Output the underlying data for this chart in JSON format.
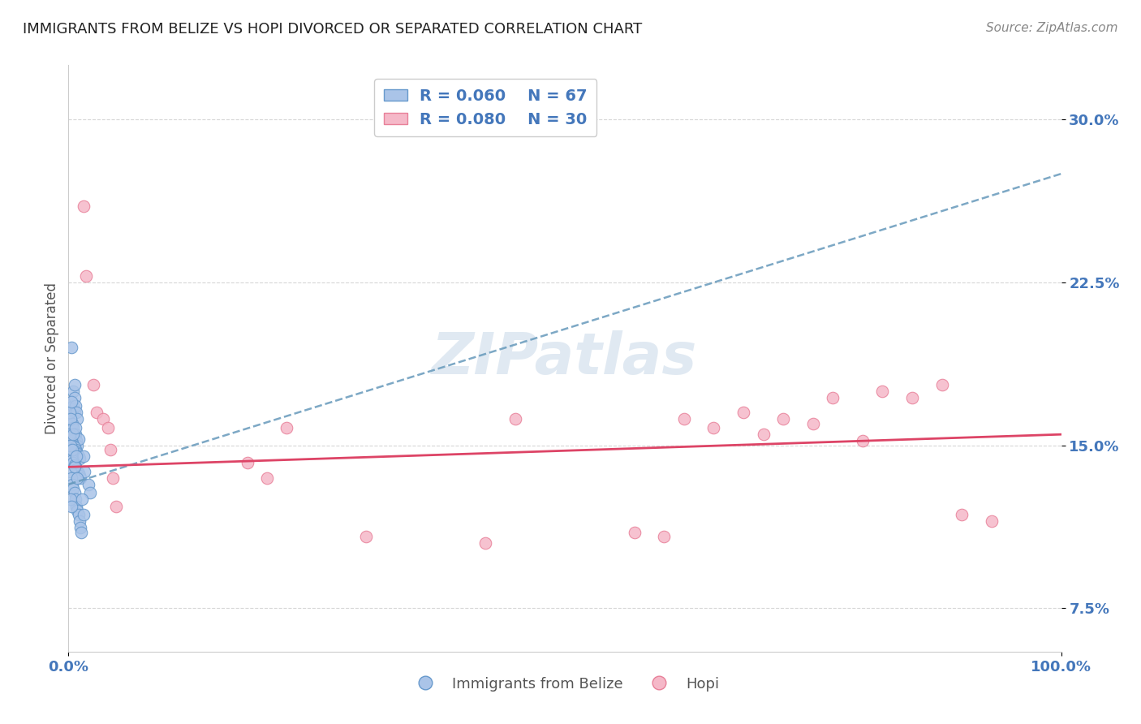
{
  "title": "IMMIGRANTS FROM BELIZE VS HOPI DIVORCED OR SEPARATED CORRELATION CHART",
  "source": "Source: ZipAtlas.com",
  "ylabel": "Divorced or Separated",
  "yticks": [
    7.5,
    15.0,
    22.5,
    30.0
  ],
  "xlim": [
    0.0,
    100.0
  ],
  "ylim": [
    5.5,
    32.5
  ],
  "watermark": "ZIPatlas",
  "legend_blue_r": "R = 0.060",
  "legend_blue_n": "N = 67",
  "legend_pink_r": "R = 0.080",
  "legend_pink_n": "N = 30",
  "blue_points": [
    [
      0.3,
      19.5
    ],
    [
      0.5,
      17.5
    ],
    [
      0.5,
      16.8
    ],
    [
      0.6,
      17.8
    ],
    [
      0.6,
      17.2
    ],
    [
      0.6,
      16.5
    ],
    [
      0.7,
      16.8
    ],
    [
      0.8,
      16.5
    ],
    [
      0.9,
      16.2
    ],
    [
      0.4,
      16.0
    ],
    [
      0.5,
      15.8
    ],
    [
      0.6,
      15.5
    ],
    [
      0.7,
      15.5
    ],
    [
      0.8,
      15.2
    ],
    [
      0.9,
      15.0
    ],
    [
      1.0,
      15.3
    ],
    [
      0.3,
      15.2
    ],
    [
      0.4,
      15.1
    ],
    [
      0.5,
      15.0
    ],
    [
      0.6,
      14.9
    ],
    [
      0.7,
      14.8
    ],
    [
      0.8,
      14.7
    ],
    [
      0.9,
      14.6
    ],
    [
      1.0,
      14.5
    ],
    [
      1.1,
      14.4
    ],
    [
      0.2,
      14.8
    ],
    [
      0.3,
      14.5
    ],
    [
      0.4,
      14.3
    ],
    [
      0.5,
      14.2
    ],
    [
      0.6,
      14.1
    ],
    [
      0.7,
      14.0
    ],
    [
      0.8,
      13.9
    ],
    [
      0.9,
      13.8
    ],
    [
      1.0,
      13.7
    ],
    [
      1.1,
      13.6
    ],
    [
      1.2,
      13.5
    ],
    [
      0.2,
      13.8
    ],
    [
      0.3,
      13.5
    ],
    [
      0.4,
      13.2
    ],
    [
      0.5,
      13.0
    ],
    [
      0.6,
      12.8
    ],
    [
      0.7,
      12.5
    ],
    [
      0.8,
      12.2
    ],
    [
      0.9,
      12.0
    ],
    [
      1.0,
      11.8
    ],
    [
      1.1,
      11.5
    ],
    [
      1.2,
      11.2
    ],
    [
      1.3,
      11.0
    ],
    [
      0.2,
      12.5
    ],
    [
      0.3,
      12.2
    ],
    [
      0.1,
      15.5
    ],
    [
      0.2,
      15.0
    ],
    [
      0.1,
      16.5
    ],
    [
      0.2,
      16.2
    ],
    [
      0.3,
      17.0
    ],
    [
      1.5,
      14.5
    ],
    [
      1.6,
      13.8
    ],
    [
      2.0,
      13.2
    ],
    [
      2.2,
      12.8
    ],
    [
      0.4,
      14.8
    ],
    [
      0.5,
      15.5
    ],
    [
      0.6,
      14.0
    ],
    [
      0.7,
      15.8
    ],
    [
      0.8,
      14.5
    ],
    [
      0.9,
      13.5
    ],
    [
      1.4,
      12.5
    ],
    [
      1.5,
      11.8
    ]
  ],
  "pink_points": [
    [
      1.5,
      26.0
    ],
    [
      1.8,
      22.8
    ],
    [
      2.5,
      17.8
    ],
    [
      2.8,
      16.5
    ],
    [
      3.5,
      16.2
    ],
    [
      4.0,
      15.8
    ],
    [
      4.2,
      14.8
    ],
    [
      4.5,
      13.5
    ],
    [
      4.8,
      12.2
    ],
    [
      18.0,
      14.2
    ],
    [
      20.0,
      13.5
    ],
    [
      22.0,
      15.8
    ],
    [
      30.0,
      10.8
    ],
    [
      42.0,
      10.5
    ],
    [
      45.0,
      16.2
    ],
    [
      57.0,
      11.0
    ],
    [
      60.0,
      10.8
    ],
    [
      62.0,
      16.2
    ],
    [
      65.0,
      15.8
    ],
    [
      68.0,
      16.5
    ],
    [
      70.0,
      15.5
    ],
    [
      72.0,
      16.2
    ],
    [
      75.0,
      16.0
    ],
    [
      77.0,
      17.2
    ],
    [
      80.0,
      15.2
    ],
    [
      82.0,
      17.5
    ],
    [
      85.0,
      17.2
    ],
    [
      88.0,
      17.8
    ],
    [
      90.0,
      11.8
    ],
    [
      93.0,
      11.5
    ]
  ],
  "blue_line_x": [
    0.0,
    100.0
  ],
  "blue_line_y": [
    13.2,
    27.5
  ],
  "pink_line_x": [
    0.0,
    100.0
  ],
  "pink_line_y": [
    14.0,
    15.5
  ],
  "background_color": "#ffffff",
  "grid_color": "#cccccc",
  "blue_dot_color": "#aac4e8",
  "blue_dot_edge": "#6699cc",
  "pink_dot_color": "#f5b8c8",
  "pink_dot_edge": "#e88099",
  "blue_line_color": "#6699bb",
  "pink_line_color": "#dd4466",
  "title_color": "#222222",
  "tick_color": "#4477bb",
  "watermark_color": "#c8d8e8",
  "dot_size": 110
}
